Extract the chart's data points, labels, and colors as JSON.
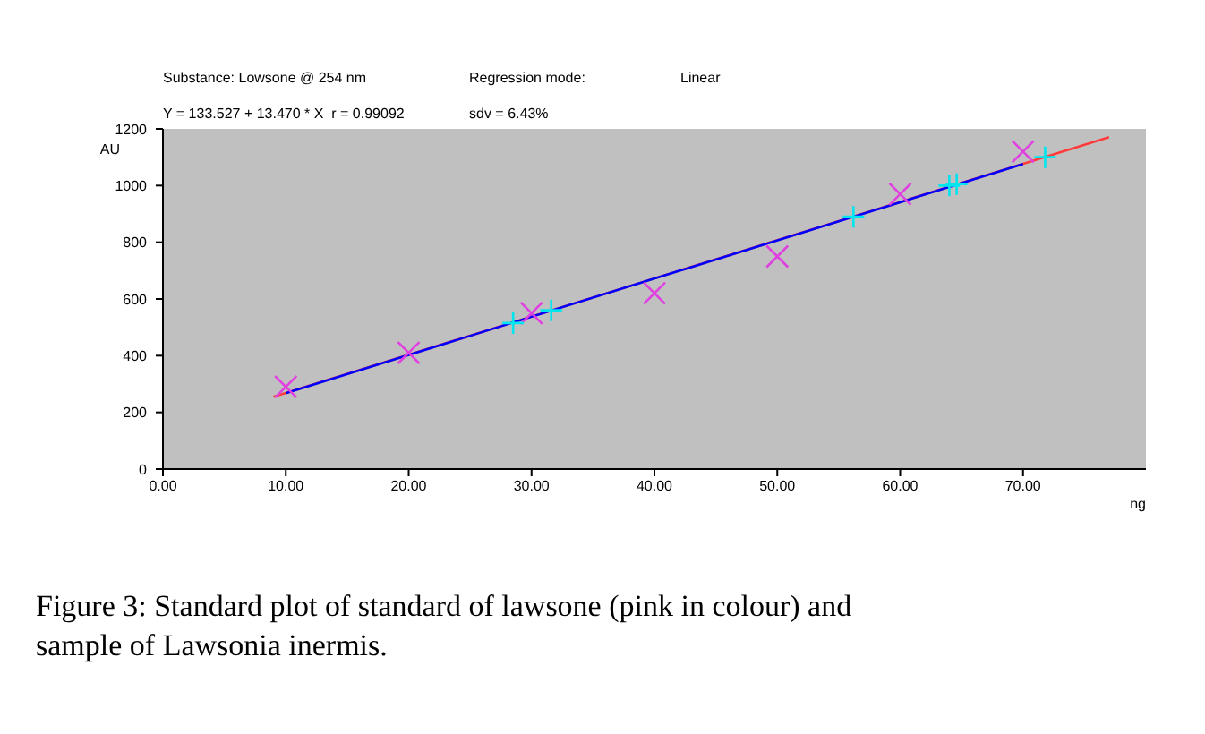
{
  "chart_data": {
    "type": "scatter",
    "annotations": [
      "Substance: Lowsone @ 254 nm",
      "Regression mode:",
      "Linear",
      "Y = 133.527 + 13.470 * X  r = 0.99092",
      "sdv = 6.43%",
      "Figure 3: Standard plot of standard of lawsone (pink in colour) and sample of Lawsonia inermis."
    ],
    "xlabel": "ng",
    "ylabel": "AU",
    "xlim": [
      0,
      80
    ],
    "xticks": [
      {
        "value": 0,
        "label": "0.00"
      },
      {
        "value": 10,
        "label": "10.00"
      },
      {
        "value": 20,
        "label": "20.00"
      },
      {
        "value": 30,
        "label": "30.00"
      },
      {
        "value": 40,
        "label": "40.00"
      },
      {
        "value": 50,
        "label": "50.00"
      },
      {
        "value": 60,
        "label": "60.00"
      },
      {
        "value": 70,
        "label": "70.00"
      }
    ],
    "ylim": [
      0,
      1200
    ],
    "yticks": [
      0,
      200,
      400,
      600,
      800,
      1000,
      1200
    ],
    "grid": false,
    "series": [
      {
        "type": "line",
        "color": "#ff3b3b",
        "x": [
          9,
          77
        ],
        "values": [
          255,
          1171
        ],
        "marker": "none"
      },
      {
        "type": "line",
        "color": "#0000ff",
        "x": [
          10,
          70
        ],
        "values": [
          268,
          1076
        ],
        "marker": "none"
      },
      {
        "color": "#e040e0",
        "marker": "cross",
        "x": [
          10,
          20,
          30,
          40,
          50,
          60,
          70
        ],
        "values": [
          290,
          410,
          550,
          620,
          750,
          970,
          1120
        ]
      },
      {
        "color": "#00e5ee",
        "marker": "plus",
        "x": [
          28.5,
          31.6,
          56.2,
          64,
          64.6,
          71.8
        ],
        "values": [
          515,
          560,
          890,
          1000,
          1005,
          1100
        ]
      }
    ]
  }
}
